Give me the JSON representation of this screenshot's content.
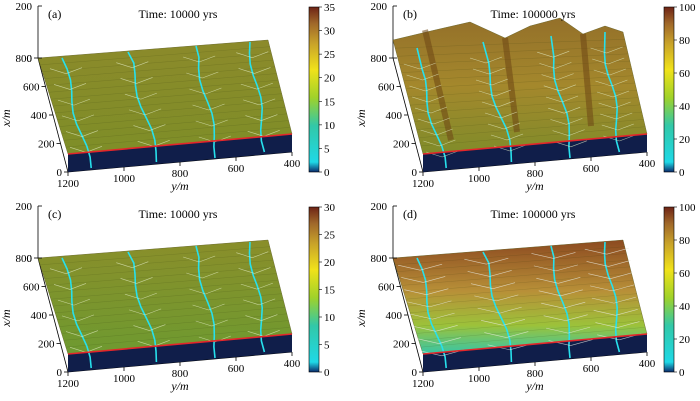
{
  "figure": {
    "description_type": "four 3D surface plots of simulated terrain elevation with channel networks",
    "colormap": [
      "#0b2a6b",
      "#1fd8e6",
      "#32c8a8",
      "#9fd22a",
      "#f0e21a",
      "#c8a22a",
      "#a0682a",
      "#6e2416"
    ]
  },
  "chart_data": [
    {
      "type": "surface",
      "panel": "(a)",
      "title": "Time: 10000 yrs",
      "xlabel": "y/m",
      "ylabel": "x/m",
      "zlabel": "",
      "x_ticks": [
        "1200",
        "1000",
        "800",
        "600",
        "400"
      ],
      "y_ticks": [
        "0",
        "200",
        "400",
        "600",
        "800"
      ],
      "z_ticks": [
        "0",
        "200"
      ],
      "colorbar": {
        "min": 0,
        "max": 35,
        "ticks": [
          "0",
          "5",
          "10",
          "15",
          "20",
          "25",
          "30",
          "35"
        ]
      },
      "relief": "low",
      "channels": 4,
      "tributary_density": "sparse",
      "dominant_color": "olive"
    },
    {
      "type": "surface",
      "panel": "(b)",
      "title": "Time: 100000 yrs",
      "xlabel": "y/m",
      "ylabel": "x/m",
      "zlabel": "",
      "x_ticks": [
        "1200",
        "1000",
        "800",
        "600",
        "400"
      ],
      "y_ticks": [
        "0",
        "200",
        "400",
        "600",
        "800"
      ],
      "z_ticks": [
        "0",
        "200"
      ],
      "colorbar": {
        "min": 0,
        "max": 100,
        "ticks": [
          "0",
          "20",
          "40",
          "60",
          "80",
          "100"
        ]
      },
      "relief": "high",
      "channels": 4,
      "tributary_density": "dense",
      "dominant_color": "olive-brown"
    },
    {
      "type": "surface",
      "panel": "(c)",
      "title": "Time: 10000 yrs",
      "xlabel": "y/m",
      "ylabel": "x/m",
      "zlabel": "",
      "x_ticks": [
        "1200",
        "1000",
        "800",
        "600",
        "400"
      ],
      "y_ticks": [
        "0",
        "200",
        "400",
        "600",
        "800"
      ],
      "z_ticks": [
        "0",
        "200"
      ],
      "colorbar": {
        "min": 0,
        "max": 30,
        "ticks": [
          "0",
          "5",
          "10",
          "15",
          "20",
          "25",
          "30"
        ]
      },
      "relief": "low",
      "channels": 4,
      "tributary_density": "sparse",
      "dominant_color": "olive-green"
    },
    {
      "type": "surface",
      "panel": "(d)",
      "title": "Time: 100000 yrs",
      "xlabel": "y/m",
      "ylabel": "x/m",
      "zlabel": "",
      "x_ticks": [
        "1200",
        "1000",
        "800",
        "600",
        "400"
      ],
      "y_ticks": [
        "0",
        "200",
        "400",
        "600",
        "800"
      ],
      "z_ticks": [
        "0",
        "200"
      ],
      "colorbar": {
        "min": 0,
        "max": 100,
        "ticks": [
          "0",
          "20",
          "40",
          "60",
          "80",
          "100"
        ]
      },
      "relief": "smooth slope",
      "channels": 4,
      "tributary_density": "dendritic",
      "dominant_color": "brown-to-green gradient"
    }
  ]
}
